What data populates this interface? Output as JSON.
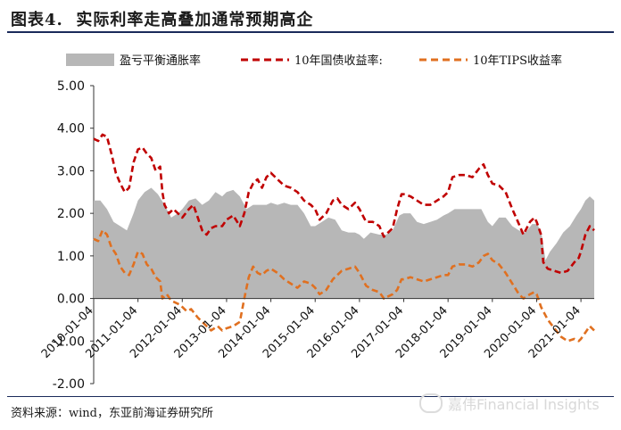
{
  "figure": {
    "title": "图表4.  实际利率走高叠加通常预期高企",
    "source": "资料来源：wind，东亚前海证券研究所",
    "watermark": "嘉伟Financial Insights"
  },
  "chart_data": {
    "type": "area+line",
    "title": "实际利率走高叠加通常预期高企",
    "ylim": [
      -2.0,
      5.0
    ],
    "yticks": [
      "5.00",
      "4.00",
      "3.00",
      "2.00",
      "1.00",
      "0.00",
      "-1.00",
      "-2.00"
    ],
    "xticks": [
      "2010-01-04",
      "2011-01-04",
      "2012-01-04",
      "2013-01-04",
      "2014-01-04",
      "2015-01-04",
      "2016-01-04",
      "2017-01-04",
      "2018-01-04",
      "2019-01-04",
      "2020-01-04",
      "2021-01-04"
    ],
    "xlim": [
      2010.0,
      2021.3
    ],
    "grid": false,
    "legend": {
      "position": "top"
    },
    "colors": {
      "breakeven": "#b7b7b7",
      "nominal": "#c00000",
      "tips": "#e07020"
    },
    "series": [
      {
        "name": "盈亏平衡通胀率",
        "style": "area",
        "points": [
          [
            2010.0,
            2.3
          ],
          [
            2010.15,
            2.3
          ],
          [
            2010.3,
            2.1
          ],
          [
            2010.45,
            1.8
          ],
          [
            2010.6,
            1.7
          ],
          [
            2010.75,
            1.6
          ],
          [
            2010.9,
            2.0
          ],
          [
            2011.0,
            2.3
          ],
          [
            2011.15,
            2.5
          ],
          [
            2011.3,
            2.6
          ],
          [
            2011.45,
            2.45
          ],
          [
            2011.6,
            2.2
          ],
          [
            2011.75,
            1.9
          ],
          [
            2011.9,
            2.0
          ],
          [
            2012.0,
            2.1
          ],
          [
            2012.15,
            2.3
          ],
          [
            2012.3,
            2.35
          ],
          [
            2012.45,
            2.2
          ],
          [
            2012.6,
            2.3
          ],
          [
            2012.75,
            2.5
          ],
          [
            2012.9,
            2.4
          ],
          [
            2013.0,
            2.5
          ],
          [
            2013.15,
            2.55
          ],
          [
            2013.3,
            2.4
          ],
          [
            2013.45,
            2.1
          ],
          [
            2013.6,
            2.2
          ],
          [
            2013.75,
            2.2
          ],
          [
            2013.9,
            2.2
          ],
          [
            2014.0,
            2.25
          ],
          [
            2014.15,
            2.2
          ],
          [
            2014.3,
            2.25
          ],
          [
            2014.45,
            2.2
          ],
          [
            2014.6,
            2.2
          ],
          [
            2014.75,
            2.0
          ],
          [
            2014.9,
            1.7
          ],
          [
            2015.0,
            1.7
          ],
          [
            2015.15,
            1.8
          ],
          [
            2015.3,
            1.9
          ],
          [
            2015.45,
            1.85
          ],
          [
            2015.6,
            1.6
          ],
          [
            2015.75,
            1.55
          ],
          [
            2015.9,
            1.55
          ],
          [
            2016.0,
            1.5
          ],
          [
            2016.1,
            1.4
          ],
          [
            2016.25,
            1.55
          ],
          [
            2016.45,
            1.5
          ],
          [
            2016.6,
            1.5
          ],
          [
            2016.75,
            1.6
          ],
          [
            2016.9,
            1.95
          ],
          [
            2017.0,
            2.0
          ],
          [
            2017.15,
            2.0
          ],
          [
            2017.3,
            1.8
          ],
          [
            2017.45,
            1.75
          ],
          [
            2017.6,
            1.8
          ],
          [
            2017.75,
            1.85
          ],
          [
            2017.9,
            1.95
          ],
          [
            2018.0,
            2.0
          ],
          [
            2018.15,
            2.1
          ],
          [
            2018.3,
            2.1
          ],
          [
            2018.45,
            2.1
          ],
          [
            2018.6,
            2.1
          ],
          [
            2018.75,
            2.1
          ],
          [
            2018.9,
            1.8
          ],
          [
            2019.0,
            1.7
          ],
          [
            2019.15,
            1.9
          ],
          [
            2019.3,
            1.9
          ],
          [
            2019.45,
            1.7
          ],
          [
            2019.6,
            1.6
          ],
          [
            2019.75,
            1.55
          ],
          [
            2019.9,
            1.75
          ],
          [
            2020.0,
            1.75
          ],
          [
            2020.1,
            1.6
          ],
          [
            2020.2,
            0.9
          ],
          [
            2020.3,
            1.1
          ],
          [
            2020.45,
            1.3
          ],
          [
            2020.6,
            1.55
          ],
          [
            2020.75,
            1.7
          ],
          [
            2020.9,
            1.95
          ],
          [
            2021.0,
            2.1
          ],
          [
            2021.1,
            2.3
          ],
          [
            2021.2,
            2.4
          ],
          [
            2021.3,
            2.3
          ]
        ]
      },
      {
        "name": "10年国债收益率:",
        "style": "dashed-line",
        "points": [
          [
            2010.0,
            3.75
          ],
          [
            2010.1,
            3.7
          ],
          [
            2010.2,
            3.85
          ],
          [
            2010.3,
            3.8
          ],
          [
            2010.4,
            3.4
          ],
          [
            2010.5,
            2.95
          ],
          [
            2010.6,
            2.7
          ],
          [
            2010.7,
            2.5
          ],
          [
            2010.8,
            2.6
          ],
          [
            2010.9,
            3.2
          ],
          [
            2011.0,
            3.5
          ],
          [
            2011.1,
            3.55
          ],
          [
            2011.2,
            3.4
          ],
          [
            2011.3,
            3.3
          ],
          [
            2011.4,
            3.0
          ],
          [
            2011.5,
            3.1
          ],
          [
            2011.55,
            2.5
          ],
          [
            2011.6,
            2.2
          ],
          [
            2011.7,
            2.0
          ],
          [
            2011.8,
            2.1
          ],
          [
            2011.9,
            2.0
          ],
          [
            2012.0,
            1.9
          ],
          [
            2012.15,
            2.1
          ],
          [
            2012.25,
            2.2
          ],
          [
            2012.35,
            1.9
          ],
          [
            2012.45,
            1.6
          ],
          [
            2012.55,
            1.5
          ],
          [
            2012.65,
            1.65
          ],
          [
            2012.75,
            1.7
          ],
          [
            2012.9,
            1.7
          ],
          [
            2013.0,
            1.85
          ],
          [
            2013.15,
            1.95
          ],
          [
            2013.3,
            1.7
          ],
          [
            2013.4,
            2.0
          ],
          [
            2013.5,
            2.5
          ],
          [
            2013.6,
            2.7
          ],
          [
            2013.7,
            2.8
          ],
          [
            2013.8,
            2.6
          ],
          [
            2013.9,
            2.85
          ],
          [
            2014.0,
            2.95
          ],
          [
            2014.15,
            2.8
          ],
          [
            2014.3,
            2.65
          ],
          [
            2014.45,
            2.6
          ],
          [
            2014.6,
            2.5
          ],
          [
            2014.75,
            2.3
          ],
          [
            2014.9,
            2.2
          ],
          [
            2015.0,
            2.1
          ],
          [
            2015.1,
            1.85
          ],
          [
            2015.25,
            2.0
          ],
          [
            2015.4,
            2.3
          ],
          [
            2015.5,
            2.35
          ],
          [
            2015.6,
            2.2
          ],
          [
            2015.75,
            2.1
          ],
          [
            2015.9,
            2.25
          ],
          [
            2016.0,
            2.1
          ],
          [
            2016.15,
            1.8
          ],
          [
            2016.3,
            1.8
          ],
          [
            2016.45,
            1.7
          ],
          [
            2016.55,
            1.45
          ],
          [
            2016.65,
            1.55
          ],
          [
            2016.75,
            1.65
          ],
          [
            2016.85,
            2.1
          ],
          [
            2016.95,
            2.45
          ],
          [
            2017.0,
            2.45
          ],
          [
            2017.15,
            2.4
          ],
          [
            2017.3,
            2.3
          ],
          [
            2017.45,
            2.2
          ],
          [
            2017.6,
            2.2
          ],
          [
            2017.75,
            2.3
          ],
          [
            2017.9,
            2.4
          ],
          [
            2018.0,
            2.5
          ],
          [
            2018.1,
            2.85
          ],
          [
            2018.25,
            2.9
          ],
          [
            2018.4,
            2.9
          ],
          [
            2018.55,
            2.85
          ],
          [
            2018.7,
            3.05
          ],
          [
            2018.8,
            3.15
          ],
          [
            2018.9,
            2.9
          ],
          [
            2019.0,
            2.7
          ],
          [
            2019.15,
            2.65
          ],
          [
            2019.3,
            2.5
          ],
          [
            2019.45,
            2.1
          ],
          [
            2019.6,
            1.75
          ],
          [
            2019.7,
            1.5
          ],
          [
            2019.85,
            1.8
          ],
          [
            2019.95,
            1.9
          ],
          [
            2020.0,
            1.8
          ],
          [
            2020.1,
            1.5
          ],
          [
            2020.15,
            0.85
          ],
          [
            2020.25,
            0.7
          ],
          [
            2020.4,
            0.65
          ],
          [
            2020.55,
            0.6
          ],
          [
            2020.7,
            0.65
          ],
          [
            2020.85,
            0.85
          ],
          [
            2020.95,
            0.95
          ],
          [
            2021.0,
            1.1
          ],
          [
            2021.1,
            1.5
          ],
          [
            2021.2,
            1.7
          ],
          [
            2021.3,
            1.6
          ]
        ]
      },
      {
        "name": "10年TIPS收益率",
        "style": "dashed-line",
        "points": [
          [
            2010.0,
            1.4
          ],
          [
            2010.1,
            1.35
          ],
          [
            2010.2,
            1.6
          ],
          [
            2010.3,
            1.5
          ],
          [
            2010.4,
            1.2
          ],
          [
            2010.5,
            1.05
          ],
          [
            2010.6,
            0.75
          ],
          [
            2010.7,
            0.6
          ],
          [
            2010.8,
            0.55
          ],
          [
            2010.9,
            0.8
          ],
          [
            2011.0,
            1.1
          ],
          [
            2011.1,
            1.05
          ],
          [
            2011.2,
            0.8
          ],
          [
            2011.3,
            0.7
          ],
          [
            2011.4,
            0.5
          ],
          [
            2011.5,
            0.4
          ],
          [
            2011.55,
            0.0
          ],
          [
            2011.65,
            0.1
          ],
          [
            2011.75,
            -0.05
          ],
          [
            2011.85,
            -0.1
          ],
          [
            2011.95,
            -0.15
          ],
          [
            2012.1,
            -0.3
          ],
          [
            2012.2,
            -0.25
          ],
          [
            2012.35,
            -0.45
          ],
          [
            2012.5,
            -0.6
          ],
          [
            2012.65,
            -0.75
          ],
          [
            2012.8,
            -0.65
          ],
          [
            2012.9,
            -0.75
          ],
          [
            2013.0,
            -0.7
          ],
          [
            2013.15,
            -0.65
          ],
          [
            2013.3,
            -0.55
          ],
          [
            2013.4,
            0.0
          ],
          [
            2013.5,
            0.5
          ],
          [
            2013.6,
            0.75
          ],
          [
            2013.7,
            0.6
          ],
          [
            2013.8,
            0.55
          ],
          [
            2013.9,
            0.65
          ],
          [
            2014.0,
            0.7
          ],
          [
            2014.15,
            0.6
          ],
          [
            2014.3,
            0.45
          ],
          [
            2014.45,
            0.35
          ],
          [
            2014.6,
            0.25
          ],
          [
            2014.75,
            0.4
          ],
          [
            2014.9,
            0.35
          ],
          [
            2015.0,
            0.25
          ],
          [
            2015.1,
            0.1
          ],
          [
            2015.25,
            0.2
          ],
          [
            2015.4,
            0.45
          ],
          [
            2015.5,
            0.55
          ],
          [
            2015.6,
            0.65
          ],
          [
            2015.75,
            0.7
          ],
          [
            2015.9,
            0.75
          ],
          [
            2016.0,
            0.6
          ],
          [
            2016.15,
            0.3
          ],
          [
            2016.3,
            0.2
          ],
          [
            2016.45,
            0.15
          ],
          [
            2016.55,
            0.0
          ],
          [
            2016.65,
            0.05
          ],
          [
            2016.75,
            0.1
          ],
          [
            2016.85,
            0.2
          ],
          [
            2016.95,
            0.45
          ],
          [
            2017.0,
            0.45
          ],
          [
            2017.15,
            0.5
          ],
          [
            2017.3,
            0.45
          ],
          [
            2017.45,
            0.4
          ],
          [
            2017.6,
            0.45
          ],
          [
            2017.75,
            0.5
          ],
          [
            2017.9,
            0.55
          ],
          [
            2018.0,
            0.55
          ],
          [
            2018.1,
            0.75
          ],
          [
            2018.25,
            0.8
          ],
          [
            2018.4,
            0.8
          ],
          [
            2018.55,
            0.75
          ],
          [
            2018.7,
            0.85
          ],
          [
            2018.8,
            1.0
          ],
          [
            2018.9,
            1.05
          ],
          [
            2019.0,
            0.9
          ],
          [
            2019.15,
            0.8
          ],
          [
            2019.3,
            0.6
          ],
          [
            2019.45,
            0.35
          ],
          [
            2019.6,
            0.1
          ],
          [
            2019.7,
            0.0
          ],
          [
            2019.85,
            0.1
          ],
          [
            2019.95,
            0.15
          ],
          [
            2020.0,
            0.1
          ],
          [
            2020.1,
            -0.2
          ],
          [
            2020.15,
            -0.3
          ],
          [
            2020.25,
            -0.5
          ],
          [
            2020.4,
            -0.7
          ],
          [
            2020.55,
            -0.9
          ],
          [
            2020.7,
            -1.0
          ],
          [
            2020.85,
            -0.95
          ],
          [
            2020.95,
            -1.0
          ],
          [
            2021.0,
            -0.95
          ],
          [
            2021.1,
            -0.8
          ],
          [
            2021.2,
            -0.65
          ],
          [
            2021.3,
            -0.75
          ]
        ]
      }
    ]
  }
}
